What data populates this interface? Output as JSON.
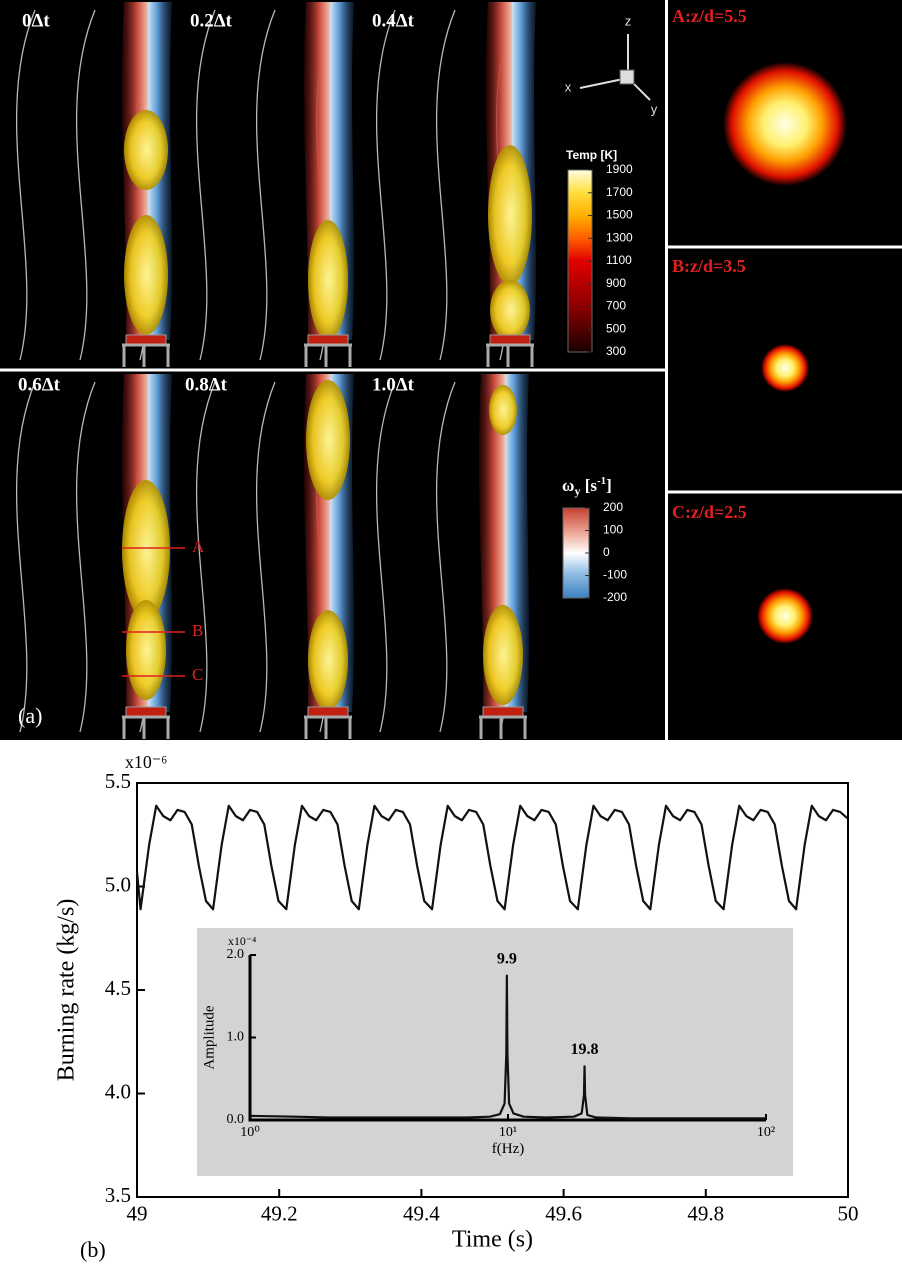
{
  "panel_a": {
    "label": "(a)",
    "frames": [
      "0Δt",
      "0.2Δt",
      "0.4Δt",
      "0.6Δt",
      "0.8Δt",
      "1.0Δt"
    ],
    "probe_lines": [
      "A",
      "B",
      "C"
    ],
    "axes": [
      "z",
      "x",
      "y"
    ],
    "temp_colorbar": {
      "title": "Temp [K]",
      "ticks": [
        1900,
        1700,
        1500,
        1300,
        1100,
        900,
        700,
        500,
        300
      ]
    },
    "vorticity_colorbar": {
      "title": [
        "ω",
        "y",
        " [s",
        "-1",
        "]"
      ],
      "ticks": [
        200,
        100,
        0,
        -100,
        -200
      ]
    },
    "slices": [
      "A:z/d=5.5",
      "B:z/d=3.5",
      "C:z/d=2.5"
    ]
  },
  "chart_data": [
    {
      "type": "line",
      "label": "(b)",
      "x_label": "Time (s)",
      "y_label": "Burning rate (kg/s)",
      "y_multiplier": "x10⁻⁶",
      "xlim": [
        49,
        50
      ],
      "ylim": [
        3.5,
        5.5
      ],
      "xticks": [
        49,
        49.2,
        49.4,
        49.6,
        49.8,
        50
      ],
      "yticks": [
        3.5,
        {
          "value": 4,
          "label": "4.0"
        },
        4.5,
        {
          "value": 5,
          "label": "5.0"
        },
        5.5
      ],
      "color": "#111111",
      "x": [
        49.0,
        49.005,
        49.017,
        49.027,
        49.037,
        49.047,
        49.057,
        49.067,
        49.077,
        49.087,
        49.097,
        49.107,
        49.119,
        49.129,
        49.139,
        49.149,
        49.159,
        49.169,
        49.179,
        49.189,
        49.199,
        49.21,
        49.222,
        49.232,
        49.242,
        49.252,
        49.262,
        49.272,
        49.282,
        49.292,
        49.302,
        49.312,
        49.324,
        49.334,
        49.344,
        49.354,
        49.364,
        49.374,
        49.384,
        49.394,
        49.404,
        49.415,
        49.427,
        49.437,
        49.447,
        49.457,
        49.467,
        49.477,
        49.487,
        49.497,
        49.507,
        49.517,
        49.529,
        49.539,
        49.549,
        49.559,
        49.569,
        49.579,
        49.589,
        49.599,
        49.609,
        49.62,
        49.632,
        49.642,
        49.652,
        49.662,
        49.672,
        49.682,
        49.692,
        49.702,
        49.712,
        49.722,
        49.734,
        49.744,
        49.754,
        49.764,
        49.774,
        49.784,
        49.794,
        49.804,
        49.814,
        49.825,
        49.837,
        49.847,
        49.857,
        49.867,
        49.877,
        49.887,
        49.897,
        49.907,
        49.917,
        49.927,
        49.939,
        49.949,
        49.959,
        49.969,
        49.979,
        49.989,
        49.999
      ],
      "values": [
        5.07,
        4.89,
        5.2,
        5.39,
        5.34,
        5.32,
        5.37,
        5.36,
        5.3,
        5.1,
        4.93,
        4.89,
        5.2,
        5.39,
        5.34,
        5.32,
        5.37,
        5.36,
        5.3,
        5.1,
        4.93,
        4.89,
        5.2,
        5.39,
        5.34,
        5.32,
        5.37,
        5.36,
        5.3,
        5.1,
        4.93,
        4.89,
        5.2,
        5.39,
        5.34,
        5.32,
        5.37,
        5.36,
        5.3,
        5.1,
        4.93,
        4.89,
        5.2,
        5.39,
        5.34,
        5.32,
        5.37,
        5.36,
        5.3,
        5.1,
        4.93,
        4.89,
        5.2,
        5.39,
        5.34,
        5.32,
        5.37,
        5.36,
        5.3,
        5.1,
        4.93,
        4.89,
        5.2,
        5.39,
        5.34,
        5.32,
        5.37,
        5.36,
        5.3,
        5.1,
        4.93,
        4.89,
        5.2,
        5.39,
        5.34,
        5.32,
        5.37,
        5.36,
        5.3,
        5.1,
        4.93,
        4.89,
        5.2,
        5.39,
        5.34,
        5.32,
        5.37,
        5.36,
        5.3,
        5.1,
        4.93,
        4.89,
        5.2,
        5.39,
        5.34,
        5.32,
        5.37,
        5.36,
        5.33
      ]
    },
    {
      "type": "line",
      "x_label": "f(Hz)",
      "y_label": "Amplitude",
      "y_multiplier": "x10⁻⁴",
      "log_x": true,
      "xlim": [
        1,
        100
      ],
      "ylim": [
        0,
        2
      ],
      "xticks": [
        {
          "value": 1,
          "label": "10⁰"
        },
        {
          "value": 10,
          "label": "10¹"
        },
        {
          "value": 100,
          "label": "10²"
        }
      ],
      "yticks": [
        {
          "value": 0,
          "label": "0.0"
        },
        {
          "value": 1,
          "label": "1.0"
        },
        {
          "value": 2,
          "label": "2.0"
        }
      ],
      "color": "#111111",
      "background": "#d3d3d3",
      "x": [
        1,
        1.5,
        2,
        3,
        5,
        7,
        8.5,
        9.3,
        9.7,
        9.85,
        9.9,
        9.95,
        10.1,
        10.5,
        11.5,
        14,
        18,
        19.3,
        19.7,
        19.8,
        19.9,
        20.3,
        22,
        30,
        50,
        100
      ],
      "values": [
        0.05,
        0.04,
        0.03,
        0.03,
        0.03,
        0.03,
        0.04,
        0.07,
        0.2,
        0.8,
        1.75,
        0.8,
        0.2,
        0.08,
        0.04,
        0.03,
        0.04,
        0.08,
        0.3,
        0.65,
        0.3,
        0.06,
        0.03,
        0.02,
        0.02,
        0.02
      ],
      "annotations": [
        {
          "text": "9.9",
          "x": 9.9
        },
        {
          "text": "19.8",
          "x": 19.8
        }
      ]
    }
  ]
}
